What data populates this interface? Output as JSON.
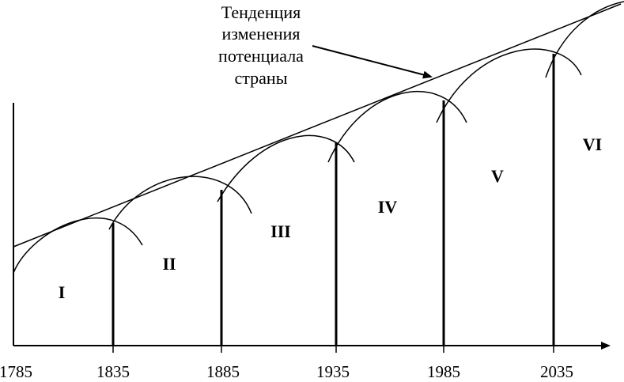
{
  "title_lines": [
    "Тенденция",
    "изменения",
    "потенциала",
    "страны"
  ],
  "axis": {
    "ticks": [
      "1785",
      "1835",
      "1885",
      "1935",
      "1985",
      "2035"
    ]
  },
  "waves": [
    "I",
    "II",
    "III",
    "IV",
    "V",
    "VI"
  ]
}
